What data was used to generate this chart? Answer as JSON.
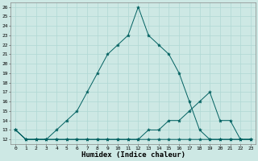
{
  "xlabel": "Humidex (Indice chaleur)",
  "bg_color": "#cde8e4",
  "line_color": "#006060",
  "grid_color": "#b0d8d4",
  "xlim": [
    -0.5,
    23.5
  ],
  "ylim": [
    11.5,
    26.5
  ],
  "xticks": [
    0,
    1,
    2,
    3,
    4,
    5,
    6,
    7,
    8,
    9,
    10,
    11,
    12,
    13,
    14,
    15,
    16,
    17,
    18,
    19,
    20,
    21,
    22,
    23
  ],
  "yticks": [
    12,
    13,
    14,
    15,
    16,
    17,
    18,
    19,
    20,
    21,
    22,
    23,
    24,
    25,
    26
  ],
  "line1_x": [
    0,
    1,
    2,
    3,
    4,
    5,
    6,
    7,
    8,
    9,
    10,
    11,
    12,
    13,
    14,
    15,
    16,
    17,
    18,
    19,
    20,
    21,
    22,
    23
  ],
  "line1_y": [
    13,
    12,
    12,
    12,
    12,
    12,
    12,
    12,
    12,
    12,
    12,
    12,
    12,
    12,
    12,
    12,
    12,
    12,
    12,
    12,
    12,
    12,
    12,
    12
  ],
  "line2_x": [
    0,
    1,
    2,
    3,
    4,
    5,
    6,
    7,
    8,
    9,
    10,
    11,
    12,
    13,
    14,
    15,
    16,
    17,
    18,
    19,
    20,
    21,
    22,
    23
  ],
  "line2_y": [
    13,
    12,
    12,
    12,
    13,
    14,
    15,
    17,
    19,
    21,
    22,
    23,
    26,
    23,
    22,
    21,
    19,
    16,
    13,
    12,
    12,
    12,
    12,
    12
  ],
  "line3_x": [
    0,
    1,
    2,
    3,
    4,
    5,
    6,
    7,
    8,
    9,
    10,
    11,
    12,
    13,
    14,
    15,
    16,
    17,
    18,
    19,
    20,
    21,
    22,
    23
  ],
  "line3_y": [
    13,
    12,
    12,
    12,
    12,
    12,
    12,
    12,
    12,
    12,
    12,
    12,
    12,
    13,
    13,
    14,
    14,
    15,
    16,
    17,
    14,
    14,
    12,
    12
  ]
}
